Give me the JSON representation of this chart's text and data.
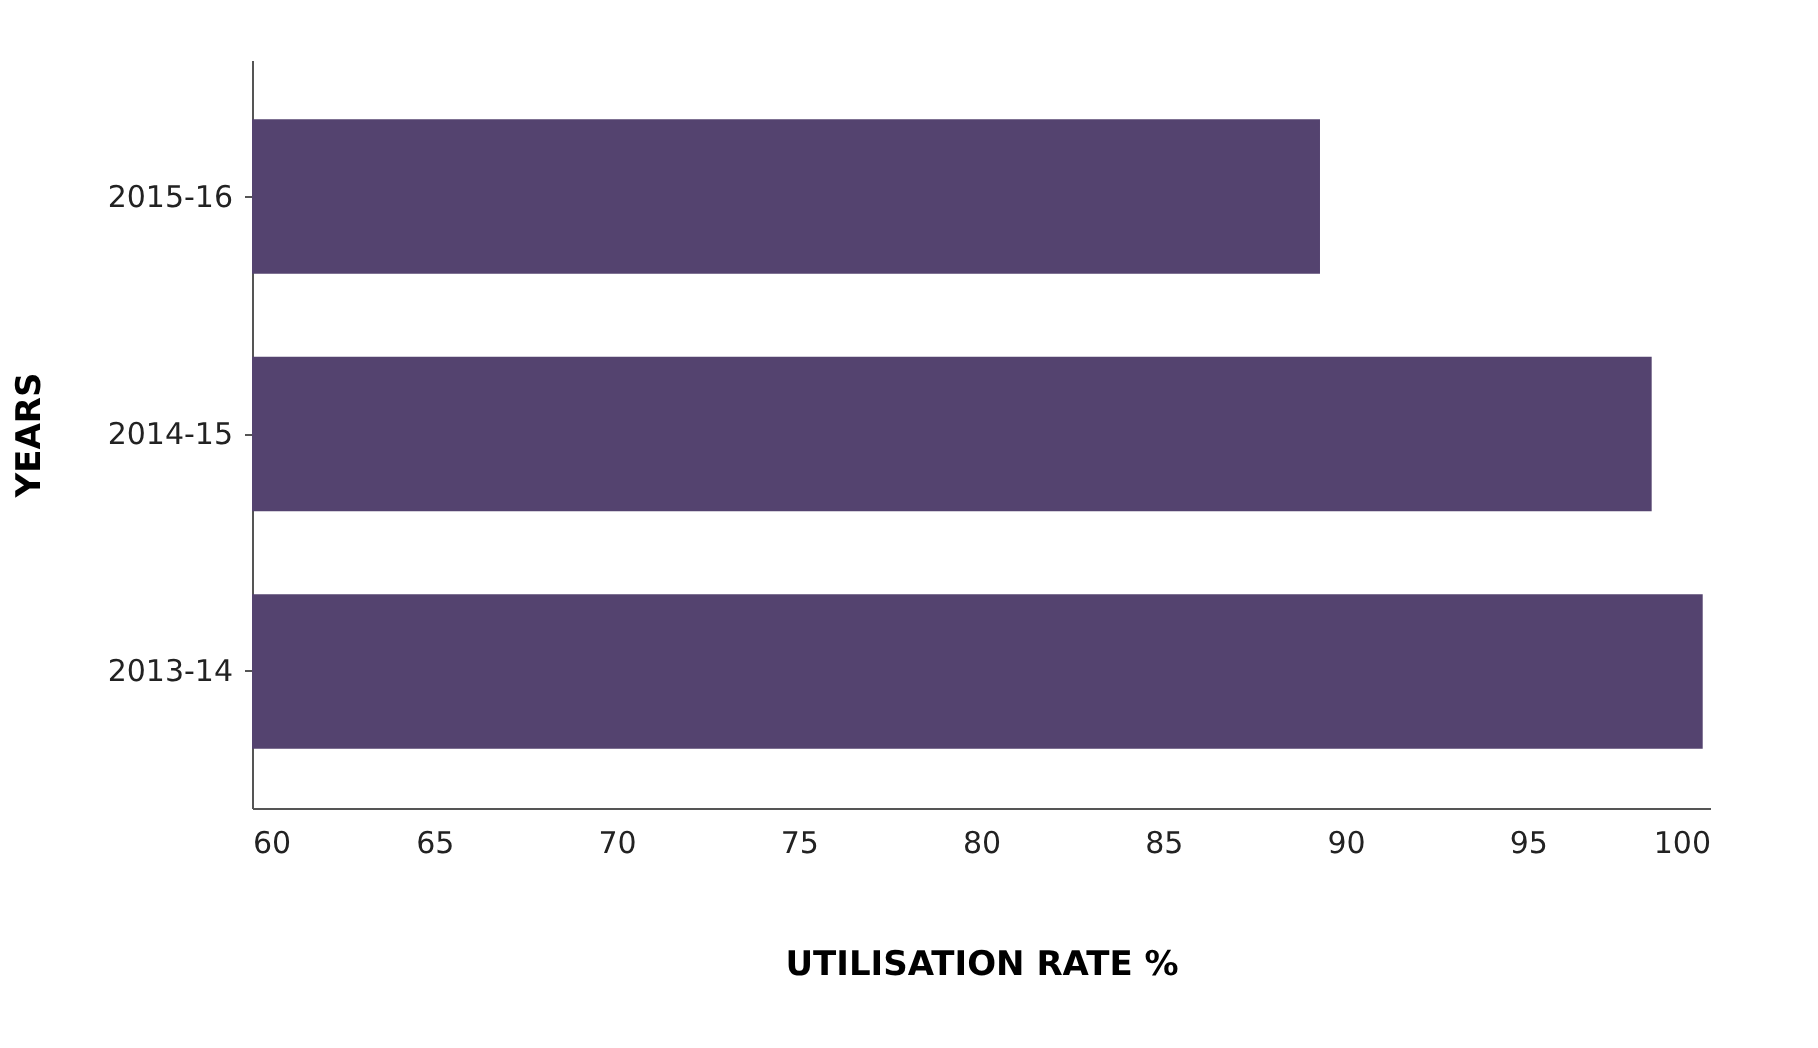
{
  "chart_data": {
    "type": "bar",
    "orientation": "horizontal",
    "xlabel": "UTILISATION RATE %",
    "ylabel": "YEARS",
    "categories": [
      "2015-16",
      "2014-15",
      "2013-14"
    ],
    "values": [
      89.3,
      98.4,
      99.8
    ],
    "color": "#54436f",
    "xlim": [
      60,
      100
    ],
    "xticks": [
      60,
      65,
      70,
      75,
      80,
      85,
      90,
      95,
      100
    ],
    "grid": false
  }
}
